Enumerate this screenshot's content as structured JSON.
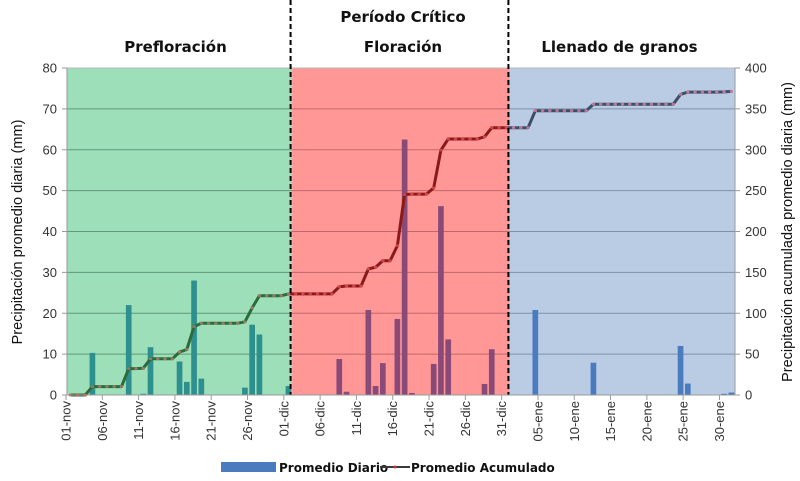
{
  "chart_data": {
    "type": "bar+line",
    "phases": [
      {
        "label": "Prefloración",
        "start_day": 0,
        "end_day": 31,
        "color": "#9ddfb8",
        "bar_color": "#2e8f8f",
        "line_color": "#2e6b3a"
      },
      {
        "label_top": "Período Crítico",
        "label": "Floración",
        "start_day": 31,
        "end_day": 61,
        "color": "#ff9797",
        "bar_color": "#8a4a78",
        "line_color": "#8a1a1a"
      },
      {
        "label": "Llenado de granos",
        "start_day": 61,
        "end_day": 92,
        "color": "#b9cce4",
        "bar_color": "#4a7bbf",
        "line_color": "#3f4e66"
      }
    ],
    "x_tick_labels": [
      "01-nov",
      "06-nov",
      "11-nov",
      "16-nov",
      "21-nov",
      "26-nov",
      "01-dic",
      "06-dic",
      "11-dic",
      "16-dic",
      "21-dic",
      "26-dic",
      "31-dic",
      "05-ene",
      "10-ene",
      "15-ene",
      "20-ene",
      "25-ene",
      "30-ene"
    ],
    "x_tick_days": [
      0,
      5,
      10,
      15,
      20,
      25,
      30,
      35,
      40,
      45,
      50,
      55,
      60,
      65,
      70,
      75,
      80,
      85,
      90
    ],
    "n_days": 92,
    "ylabel_left": "Precipitación promedio diaria (mm)",
    "ylabel_right": "Precipitación acumulada promedio diaria (mm)",
    "ylim_left": [
      0,
      80
    ],
    "yticks_left": [
      0,
      10,
      20,
      30,
      40,
      50,
      60,
      70,
      80
    ],
    "ylim_right": [
      0,
      400
    ],
    "yticks_right": [
      0,
      50,
      100,
      150,
      200,
      250,
      300,
      350,
      400
    ],
    "grid": true,
    "legend_position": "bottom",
    "series": [
      {
        "name": "Promedio Diario",
        "type": "bar",
        "axis": "left",
        "color": "#4a7bbf",
        "daily": {
          "3": 10.3,
          "8": 22,
          "10": 0.3,
          "11": 11.7,
          "15": 8.2,
          "16": 3.2,
          "17": 28,
          "18": 4,
          "24": 1.8,
          "25": 17.2,
          "26": 14.8,
          "30": 2.2,
          "37": 8.8,
          "38": 0.8,
          "41": 20.8,
          "42": 2.2,
          "43": 7.8,
          "45": 18.6,
          "46": 62.5,
          "47": 0.5,
          "50": 7.6,
          "51": 46.2,
          "52": 13.6,
          "57": 2.7,
          "58": 11.2,
          "64": 20.8,
          "72": 7.9,
          "84": 12,
          "85": 2.8,
          "90": 0.3,
          "91": 0.6
        }
      },
      {
        "name": "Promedio Acumulado",
        "type": "line",
        "axis": "right",
        "color": "#c0392b",
        "note": "cumulative sum of Promedio Diario"
      }
    ]
  },
  "legend": {
    "bar_label": "Promedio Diario",
    "line_label": "Promedio Acumulado"
  }
}
